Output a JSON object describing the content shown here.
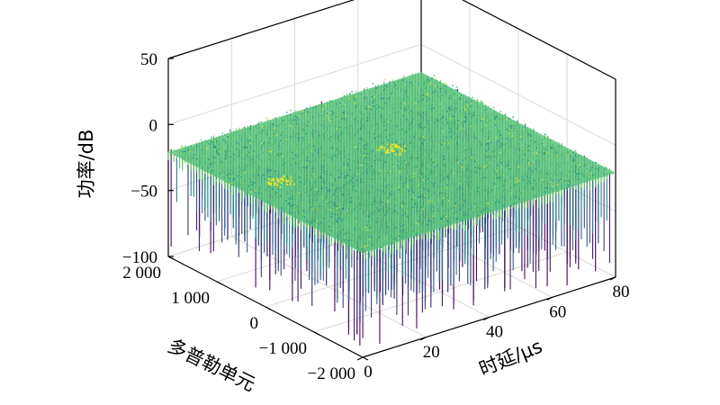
{
  "chart_data": {
    "type": "surface",
    "title": "",
    "xlabel": "时延/μs",
    "ylabel": "多普勒单元",
    "zlabel": "功率/dB",
    "xlim": [
      0,
      80
    ],
    "ylim": [
      -2000,
      2000
    ],
    "zlim": [
      -100,
      50
    ],
    "x_ticks": [
      "0",
      "20",
      "40",
      "60",
      "80"
    ],
    "y_ticks": [
      "−2 000",
      "−1 000",
      "0",
      "1 000",
      "2 000"
    ],
    "z_ticks": [
      "−100",
      "−50",
      "0",
      "50"
    ],
    "grid": true,
    "colormap": "viridis",
    "surface": {
      "mean_level_db": -25,
      "peak_level_db": -10,
      "min_level_db": -95,
      "description_points": [
        {
          "x": 5,
          "y": 0,
          "z": -10
        },
        {
          "x": 40,
          "y": 0,
          "z": -12
        }
      ]
    }
  }
}
